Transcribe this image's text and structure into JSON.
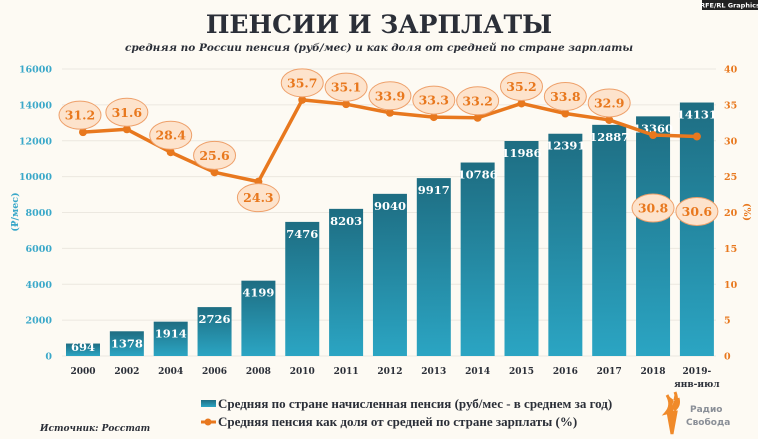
{
  "badge": "RFE/RL Graphics",
  "source": "Источник: Росстат",
  "logo": {
    "line1": "Радио",
    "line2": "Свобода"
  },
  "colors": {
    "bars_top": "#1e6d82",
    "bars_bottom": "#2ba5c3",
    "line": "#e8781e",
    "label_fill": "#fde3cc",
    "left_axis": "#3aa8c9"
  },
  "chart_data": {
    "type": "bar+line",
    "title": "ПЕНСИИ И ЗАРПЛАТЫ",
    "subtitle": "средняя по России пенсия (руб/мес) и как доля от средней по стране зарплаты",
    "categories": [
      "2000",
      "2002",
      "2004",
      "2006",
      "2008",
      "2010",
      "2011",
      "2012",
      "2013",
      "2014",
      "2015",
      "2016",
      "2017",
      "2018",
      "2019-"
    ],
    "category_sublabel_last": "янв-июл",
    "ylabel_left": "(₽/мес)",
    "ylabel_right": "(%)",
    "ylim_left": [
      0,
      16000
    ],
    "yticks_left": [
      0,
      2000,
      4000,
      6000,
      8000,
      10000,
      12000,
      14000,
      16000
    ],
    "ylim_right": [
      0,
      40
    ],
    "yticks_right": [
      0,
      5,
      10,
      15,
      20,
      25,
      30,
      35,
      40
    ],
    "grid": true,
    "legend_position": "bottom",
    "series": [
      {
        "name": "Средняя по стране начисленная пенсия (руб/мес - в среднем за год)",
        "type": "bar",
        "axis": "left",
        "values": [
          694,
          1378,
          1914,
          2726,
          4199,
          7476,
          8203,
          9040,
          9917,
          10786,
          11986,
          12391,
          12887,
          13360,
          14131
        ]
      },
      {
        "name": "Средняя пенсия как доля от средней по стране зарплаты (%)",
        "type": "line",
        "axis": "right",
        "values": [
          31.2,
          31.6,
          28.4,
          25.6,
          24.3,
          35.7,
          35.1,
          33.9,
          33.3,
          33.2,
          35.2,
          33.8,
          32.9,
          30.8,
          30.6
        ]
      }
    ]
  }
}
